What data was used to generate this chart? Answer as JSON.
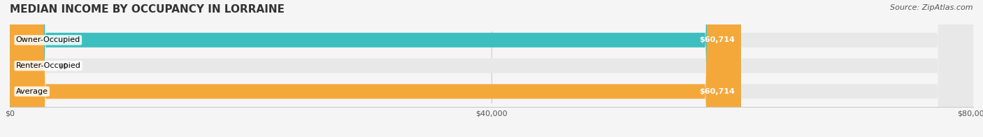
{
  "title": "MEDIAN INCOME BY OCCUPANCY IN LORRAINE",
  "source": "Source: ZipAtlas.com",
  "categories": [
    "Owner-Occupied",
    "Renter-Occupied",
    "Average"
  ],
  "values": [
    60714,
    0,
    60714
  ],
  "bar_colors": [
    "#3dbfbf",
    "#b8a0c8",
    "#f5a83a"
  ],
  "bar_labels": [
    "$60,714",
    "$0",
    "$60,714"
  ],
  "xlim": [
    0,
    80000
  ],
  "xticks": [
    0,
    40000,
    80000
  ],
  "xticklabels": [
    "$0",
    "$40,000",
    "$80,000"
  ],
  "background_color": "#f0f0f0",
  "bar_bg_color": "#e8e8e8",
  "title_fontsize": 11,
  "source_fontsize": 8,
  "label_fontsize": 8,
  "bar_height": 0.55,
  "figsize": [
    14.06,
    1.96
  ],
  "dpi": 100
}
